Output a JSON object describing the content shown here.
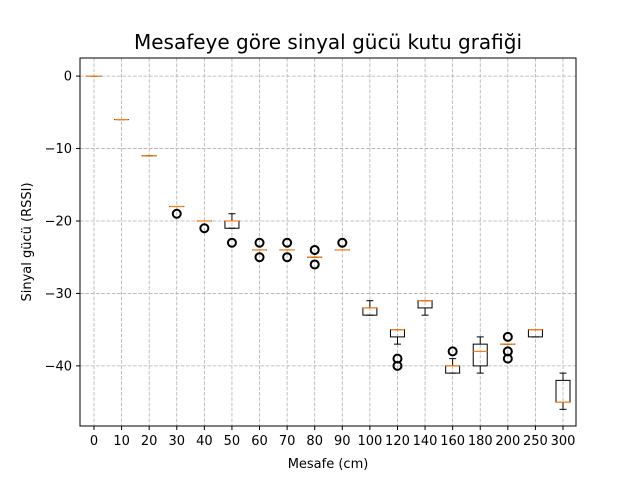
{
  "chart_data": {
    "type": "box",
    "title": "Mesafeye göre sinyal gücü kutu grafiği",
    "xlabel": "Mesafe (cm)",
    "ylabel": "Sinyal gücü (RSSI)",
    "ylim": [
      -48.3,
      2.5
    ],
    "yticks": [
      0,
      -10,
      -20,
      -30,
      -40
    ],
    "ytick_labels": [
      "0",
      "−10",
      "−20",
      "−30",
      "−40"
    ],
    "grid": true,
    "colors": {
      "box": "#000000",
      "median": "#ff7f0e",
      "grid": "#b0b0b0"
    },
    "categories": [
      "0",
      "10",
      "20",
      "30",
      "40",
      "50",
      "60",
      "70",
      "80",
      "90",
      "100",
      "120",
      "140",
      "160",
      "180",
      "200",
      "250",
      "300"
    ],
    "boxes": [
      {
        "q1": 0,
        "q3": 0,
        "median": 0,
        "whislo": 0,
        "whishi": 0,
        "fliers": []
      },
      {
        "q1": -6,
        "q3": -6,
        "median": -6,
        "whislo": -6,
        "whishi": -6,
        "fliers": []
      },
      {
        "q1": -11,
        "q3": -11,
        "median": -11,
        "whislo": -11,
        "whishi": -11,
        "fliers": []
      },
      {
        "q1": -18,
        "q3": -18,
        "median": -18,
        "whislo": -18,
        "whishi": -18,
        "fliers": [
          -19
        ]
      },
      {
        "q1": -20,
        "q3": -20,
        "median": -20,
        "whislo": -20,
        "whishi": -20,
        "fliers": [
          -21
        ]
      },
      {
        "q1": -21,
        "q3": -20,
        "median": -20,
        "whislo": -21,
        "whishi": -19,
        "fliers": [
          -23
        ]
      },
      {
        "q1": -24,
        "q3": -24,
        "median": -24,
        "whislo": -24,
        "whishi": -24,
        "fliers": [
          -23,
          -25
        ]
      },
      {
        "q1": -24,
        "q3": -24,
        "median": -24,
        "whislo": -24,
        "whishi": -24,
        "fliers": [
          -23,
          -25
        ]
      },
      {
        "q1": -25,
        "q3": -25,
        "median": -25,
        "whislo": -25,
        "whishi": -25,
        "fliers": [
          -24,
          -26
        ]
      },
      {
        "q1": -24,
        "q3": -24,
        "median": -24,
        "whislo": -24,
        "whishi": -24,
        "fliers": [
          -23
        ]
      },
      {
        "q1": -33,
        "q3": -32,
        "median": -32,
        "whislo": -33,
        "whishi": -31,
        "fliers": []
      },
      {
        "q1": -36,
        "q3": -35,
        "median": -35,
        "whislo": -37,
        "whishi": -35,
        "fliers": [
          -39,
          -40
        ]
      },
      {
        "q1": -32,
        "q3": -31,
        "median": -31,
        "whislo": -33,
        "whishi": -31,
        "fliers": []
      },
      {
        "q1": -41,
        "q3": -40,
        "median": -40,
        "whislo": -41,
        "whishi": -39,
        "fliers": [
          -38
        ]
      },
      {
        "q1": -40,
        "q3": -37,
        "median": -38,
        "whislo": -41,
        "whishi": -36,
        "fliers": []
      },
      {
        "q1": -37,
        "q3": -37,
        "median": -37,
        "whislo": -37,
        "whishi": -37,
        "fliers": [
          -36,
          -38,
          -39
        ]
      },
      {
        "q1": -36,
        "q3": -35,
        "median": -35,
        "whislo": -36,
        "whishi": -35,
        "fliers": []
      },
      {
        "q1": -45,
        "q3": -42,
        "median": -45,
        "whislo": -46,
        "whishi": -41,
        "fliers": []
      }
    ]
  }
}
